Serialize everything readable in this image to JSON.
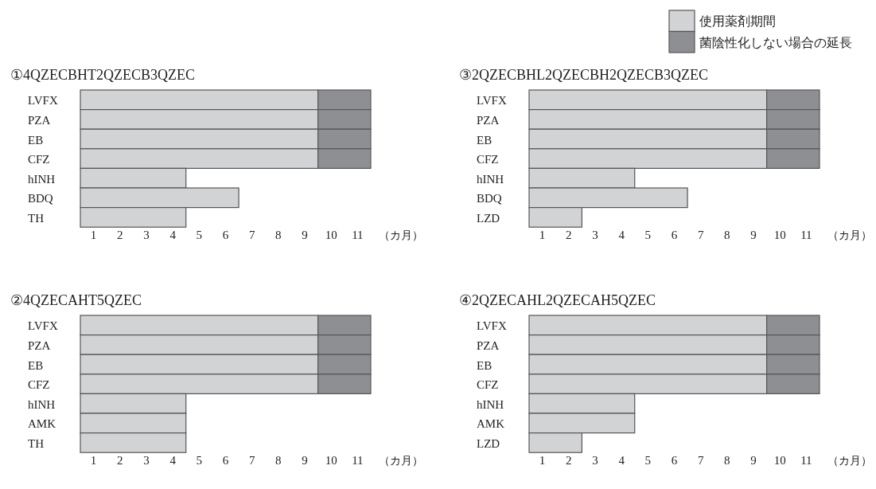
{
  "chart_data": [
    {
      "type": "bar",
      "orientation": "horizontal",
      "stacked": true,
      "title": "①4QZECBHT2QZECB3QZEC",
      "xlabel": "（カ月）",
      "categories": [
        "LVFX",
        "PZA",
        "EB",
        "CFZ",
        "hINH",
        "BDQ",
        "TH"
      ],
      "series": [
        {
          "color": "#d2d3d5",
          "values": [
            9,
            9,
            9,
            9,
            4,
            6,
            4
          ]
        },
        {
          "color": "#8e8f92",
          "values": [
            2,
            2,
            2,
            2,
            null,
            null,
            null
          ]
        }
      ],
      "xlim": [
        0,
        11
      ],
      "xticks": [
        {
          "value": 0.5,
          "label": "1"
        },
        {
          "value": 1.5,
          "label": "2"
        },
        {
          "value": 2.5,
          "label": "3"
        },
        {
          "value": 3.5,
          "label": "4"
        },
        {
          "value": 4.5,
          "label": "5"
        },
        {
          "value": 5.5,
          "label": "6"
        },
        {
          "value": 6.5,
          "label": "7"
        },
        {
          "value": 7.5,
          "label": "8"
        },
        {
          "value": 8.5,
          "label": "9"
        },
        {
          "value": 9.5,
          "label": "10"
        },
        {
          "value": 10.5,
          "label": "11"
        }
      ],
      "legend": false
    },
    {
      "type": "bar",
      "orientation": "horizontal",
      "stacked": true,
      "title": "③2QZECBHL2QZECBH2QZECB3QZEC",
      "xlabel": "（カ月）",
      "categories": [
        "LVFX",
        "PZA",
        "EB",
        "CFZ",
        "hINH",
        "BDQ",
        "LZD"
      ],
      "series": [
        {
          "name": "使用薬剤期間",
          "color": "#d2d3d5",
          "values": [
            9,
            9,
            9,
            9,
            4,
            6,
            2
          ]
        },
        {
          "name": "菌陰性化しない場合の延長",
          "color": "#8e8f92",
          "values": [
            2,
            2,
            2,
            2,
            null,
            null,
            null
          ]
        }
      ],
      "xlim": [
        0,
        11
      ],
      "xticks": [
        {
          "value": 0.5,
          "label": "1"
        },
        {
          "value": 1.5,
          "label": "2"
        },
        {
          "value": 2.5,
          "label": "3"
        },
        {
          "value": 3.5,
          "label": "4"
        },
        {
          "value": 4.5,
          "label": "5"
        },
        {
          "value": 5.5,
          "label": "6"
        },
        {
          "value": 6.5,
          "label": "7"
        },
        {
          "value": 7.5,
          "label": "8"
        },
        {
          "value": 8.5,
          "label": "9"
        },
        {
          "value": 9.5,
          "label": "10"
        },
        {
          "value": 10.5,
          "label": "11"
        }
      ],
      "legend": "top right"
    },
    {
      "type": "bar",
      "orientation": "horizontal",
      "stacked": true,
      "title": "②4QZECAHT5QZEC",
      "xlabel": "（カ月）",
      "categories": [
        "LVFX",
        "PZA",
        "EB",
        "CFZ",
        "hINH",
        "AMK",
        "TH"
      ],
      "series": [
        {
          "color": "#d2d3d5",
          "values": [
            9,
            9,
            9,
            9,
            4,
            4,
            4
          ]
        },
        {
          "color": "#8e8f92",
          "values": [
            2,
            2,
            2,
            2,
            null,
            null,
            null
          ]
        }
      ],
      "xlim": [
        0,
        11
      ],
      "xticks": [
        {
          "value": 0.5,
          "label": "1"
        },
        {
          "value": 1.5,
          "label": "2"
        },
        {
          "value": 2.5,
          "label": "3"
        },
        {
          "value": 3.5,
          "label": "4"
        },
        {
          "value": 4.5,
          "label": "5"
        },
        {
          "value": 5.5,
          "label": "6"
        },
        {
          "value": 6.5,
          "label": "7"
        },
        {
          "value": 7.5,
          "label": "8"
        },
        {
          "value": 8.5,
          "label": "9"
        },
        {
          "value": 9.5,
          "label": "10"
        },
        {
          "value": 10.5,
          "label": "11"
        }
      ],
      "legend": false
    },
    {
      "type": "bar",
      "orientation": "horizontal",
      "stacked": true,
      "title": "④2QZECAHL2QZECAH5QZEC",
      "xlabel": "（カ月）",
      "categories": [
        "LVFX",
        "PZA",
        "EB",
        "CFZ",
        "hINH",
        "AMK",
        "LZD"
      ],
      "series": [
        {
          "color": "#d2d3d5",
          "values": [
            9,
            9,
            9,
            9,
            4,
            4,
            2
          ]
        },
        {
          "color": "#8e8f92",
          "values": [
            2,
            2,
            2,
            2,
            null,
            null,
            null
          ]
        }
      ],
      "xlim": [
        0,
        11
      ],
      "xticks": [
        {
          "value": 0.5,
          "label": "1"
        },
        {
          "value": 1.5,
          "label": "2"
        },
        {
          "value": 2.5,
          "label": "3"
        },
        {
          "value": 3.5,
          "label": "4"
        },
        {
          "value": 4.5,
          "label": "5"
        },
        {
          "value": 5.5,
          "label": "6"
        },
        {
          "value": 6.5,
          "label": "7"
        },
        {
          "value": 7.5,
          "label": "8"
        },
        {
          "value": 8.5,
          "label": "9"
        },
        {
          "value": 9.5,
          "label": "10"
        },
        {
          "value": 10.5,
          "label": "11"
        }
      ],
      "legend": false
    }
  ]
}
